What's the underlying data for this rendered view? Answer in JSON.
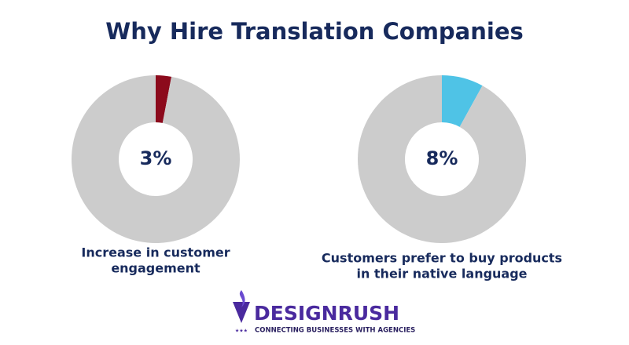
{
  "title": "Why Hire Translation Companies",
  "chart_data": [
    {
      "type": "donut",
      "values": [
        3,
        97
      ],
      "colors": [
        "#8c0a1c",
        "#cccccc"
      ],
      "center_label": "3%",
      "label": [
        "Increase in customer",
        "engagement"
      ]
    },
    {
      "type": "donut",
      "values": [
        8,
        92
      ],
      "colors": [
        "#4fc3e6",
        "#cccccc"
      ],
      "center_label": "8%",
      "label": [
        "Customers prefer to buy products",
        "in their native language"
      ]
    }
  ],
  "brand": {
    "name": "DESIGNRUSH",
    "tagline": "CONNECTING BUSINESSES WITH AGENCIES"
  }
}
